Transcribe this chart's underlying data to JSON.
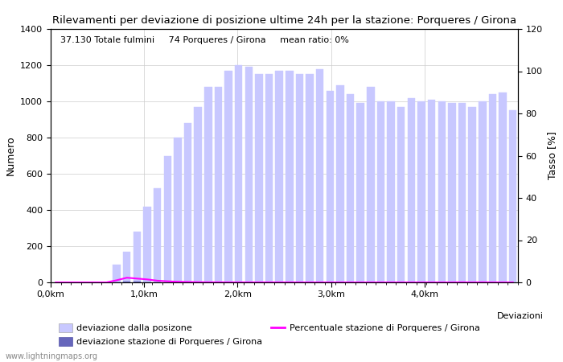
{
  "title": "Rilevamenti per deviazione di posizione ultime 24h per la stazione: Porqueres / Girona",
  "subtitle": "37.130 Totale fulmini     74 Porqueres / Girona     mean ratio: 0%",
  "ylabel_left": "Numero",
  "ylabel_right": "Tasso [%]",
  "xlabel_right": "Deviazioni",
  "xlim": [
    0,
    46
  ],
  "ylim_left": [
    0,
    1400
  ],
  "ylim_right": [
    0,
    120
  ],
  "xtick_positions": [
    0,
    9.2,
    18.4,
    27.6,
    36.8
  ],
  "xtick_labels": [
    "0,0km",
    "1,0km",
    "2,0km",
    "3,0km",
    "4,0km"
  ],
  "ytick_left": [
    0,
    200,
    400,
    600,
    800,
    1000,
    1200,
    1400
  ],
  "ytick_right": [
    0,
    20,
    40,
    60,
    80,
    100,
    120
  ],
  "bar_positions": [
    0.5,
    1.5,
    2.5,
    3.5,
    4.5,
    5.5,
    6.5,
    7.5,
    8.5,
    9.5,
    10.5,
    11.5,
    12.5,
    13.5,
    14.5,
    15.5,
    16.5,
    17.5,
    18.5,
    19.5,
    20.5,
    21.5,
    22.5,
    23.5,
    24.5,
    25.5,
    26.5,
    27.5,
    28.5,
    29.5,
    30.5,
    31.5,
    32.5,
    33.5,
    34.5,
    35.5,
    36.5,
    37.5,
    38.5,
    39.5,
    40.5,
    41.5,
    42.5,
    43.5,
    44.5,
    45.5
  ],
  "bar_heights": [
    0,
    0,
    0,
    0,
    0,
    0,
    100,
    170,
    280,
    420,
    520,
    700,
    800,
    880,
    970,
    1080,
    1080,
    1170,
    1200,
    1190,
    1150,
    1150,
    1170,
    1170,
    1150,
    1150,
    1180,
    1060,
    1090,
    1040,
    990,
    1080,
    1000,
    1000,
    970,
    1020,
    1000,
    1010,
    1000,
    990,
    990,
    970,
    1000,
    1040,
    1050,
    950
  ],
  "bar_color": "#c8c8ff",
  "bar_color2": "#6666bb",
  "station_bar_positions": [
    6.5,
    7.5,
    8.5,
    9.5,
    10.5
  ],
  "station_bar_heights": [
    2,
    5,
    3,
    2,
    1
  ],
  "line_y": [
    0,
    0,
    0,
    0,
    0,
    0,
    1.0,
    2.2,
    1.8,
    1.4,
    0.8,
    0.5,
    0.3,
    0.2,
    0.1,
    0.05,
    0.05,
    0.02,
    0.02,
    0.02,
    0.02,
    0.02,
    0.02,
    0.02,
    0.0,
    0.0,
    0.0,
    0.0,
    0.0,
    0.0,
    0.0,
    0.0,
    0.0,
    0.0,
    0.0,
    0.0,
    0.0,
    0.0,
    0.0,
    0.0,
    0.05,
    0.0,
    0.05,
    0.0,
    0.0,
    0.0
  ],
  "line_scale": 10,
  "line_color": "#ff00ff",
  "watermark": "www.lightningmaps.org",
  "legend1_label": "deviazione dalla posizone",
  "legend2_label": "deviazione stazione di Porqueres / Girona",
  "legend3_label": "Percentuale stazione di Porqueres / Girona",
  "bar_width": 0.75
}
